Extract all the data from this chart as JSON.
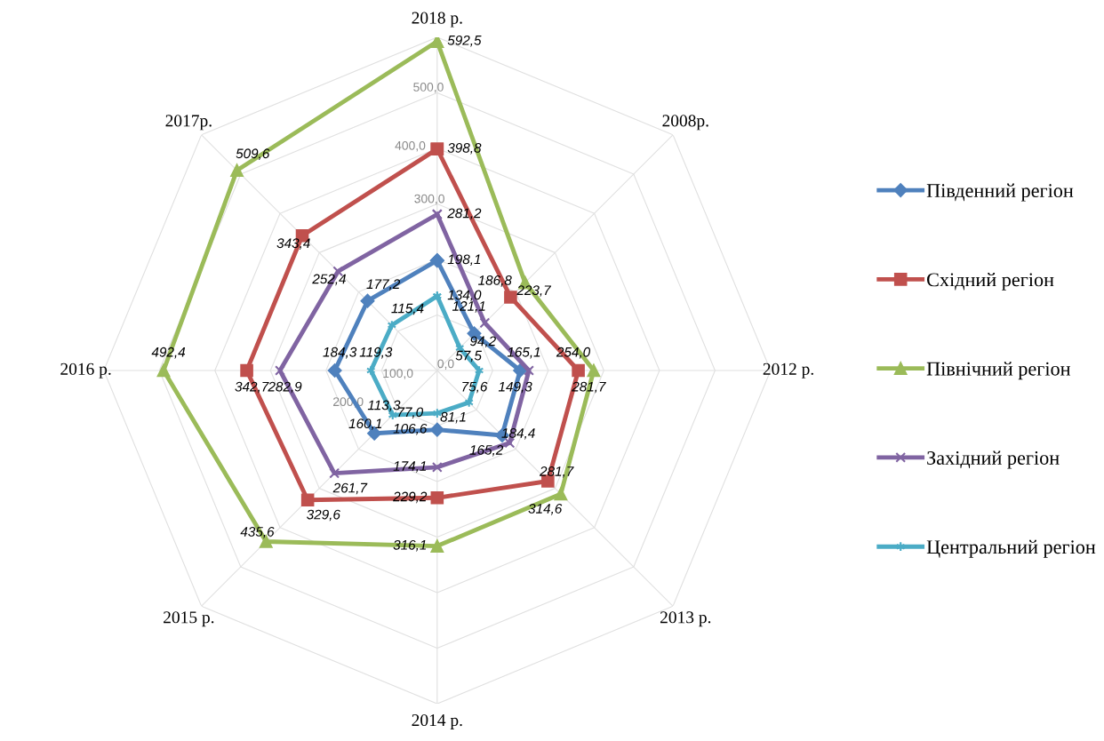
{
  "chart_data": {
    "type": "radar",
    "categories": [
      "2018 р.",
      "2008р.",
      "2012 р.",
      "2013 р.",
      "2014 р.",
      "2015 р.",
      "2016 р.",
      "2017р."
    ],
    "series": [
      {
        "name": "Південний регіон",
        "color": "#4f81bd",
        "marker": "diamond",
        "values": [
          198.1,
          94.2,
          149.3,
          165.2,
          106.6,
          160.1,
          184.3,
          177.2
        ],
        "value_labels": [
          "198,1",
          "94,2",
          "149,3",
          "165,2",
          "106,6",
          "160,1",
          "184,3",
          "177,2"
        ]
      },
      {
        "name": "Східний регіон",
        "color": "#c0504d",
        "marker": "square",
        "values": [
          398.8,
          186.8,
          254.0,
          281.7,
          229.2,
          329.6,
          342.7,
          343.4
        ],
        "value_labels": [
          "398,8",
          "186,8",
          "254,0",
          "281,7",
          "229,2",
          "329,6",
          "342,7",
          "343,4"
        ]
      },
      {
        "name": "Північний регіон",
        "color": "#9bbb59",
        "marker": "triangle",
        "values": [
          592.5,
          223.7,
          281.7,
          314.6,
          316.1,
          435.6,
          492.4,
          509.6
        ],
        "value_labels": [
          "592,5",
          "223,7",
          "281,7",
          "314,6",
          "316,1",
          "435,6",
          "492,4",
          "509,6"
        ]
      },
      {
        "name": "Західний регіон",
        "color": "#8064a2",
        "marker": "cross",
        "values": [
          281.2,
          121.1,
          165.1,
          184.4,
          174.1,
          261.7,
          282.9,
          252.4
        ],
        "value_labels": [
          "281,2",
          "121,1",
          "165,1",
          "184,4",
          "174,1",
          "261,7",
          "282,9",
          "252,4"
        ]
      },
      {
        "name": "Центральний регіон",
        "color": "#4bacc6",
        "marker": "star",
        "values": [
          134.0,
          57.5,
          75.6,
          81.1,
          77.0,
          113.3,
          119.3,
          115.4
        ],
        "value_labels": [
          "134,0",
          "57,5",
          "75,6",
          "81,1",
          "77,0",
          "113,3",
          "119,3",
          "115,4"
        ]
      }
    ],
    "ylim": [
      0,
      600
    ],
    "yticks": [
      {
        "value": 0,
        "label": "0,0"
      },
      {
        "value": 100,
        "label": "100,0"
      },
      {
        "value": 200,
        "label": "200,0"
      },
      {
        "value": 300,
        "label": "300,0"
      },
      {
        "value": 400,
        "label": "400,0"
      },
      {
        "value": 500,
        "label": "500,0"
      }
    ],
    "grid": true,
    "legend": "right"
  }
}
